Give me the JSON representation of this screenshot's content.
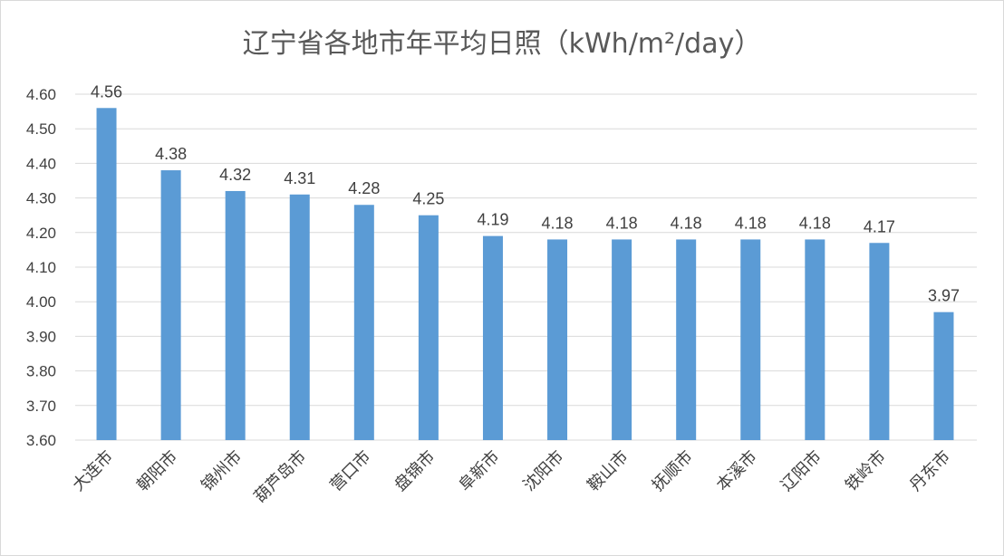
{
  "chart_data": {
    "type": "bar",
    "title": "辽宁省各地市年平均日照（kWh/m²/day）",
    "categories": [
      "大连市",
      "朝阳市",
      "锦州市",
      "葫芦岛市",
      "营口市",
      "盘锦市",
      "阜新市",
      "沈阳市",
      "鞍山市",
      "抚顺市",
      "本溪市",
      "辽阳市",
      "铁岭市",
      "丹东市"
    ],
    "values": [
      4.56,
      4.38,
      4.32,
      4.31,
      4.28,
      4.25,
      4.19,
      4.18,
      4.18,
      4.18,
      4.18,
      4.18,
      4.17,
      3.97
    ],
    "data_labels": [
      "4.56",
      "4.38",
      "4.32",
      "4.31",
      "4.28",
      "4.25",
      "4.19",
      "4.18",
      "4.18",
      "4.18",
      "4.18",
      "4.18",
      "4.17",
      "3.97"
    ],
    "ylim": [
      3.6,
      4.6
    ],
    "yticks": [
      "3.60",
      "3.70",
      "3.80",
      "3.90",
      "4.00",
      "4.10",
      "4.20",
      "4.30",
      "4.40",
      "4.50",
      "4.60"
    ],
    "grid": true,
    "legend": "none",
    "bar_color": "#5b9bd5",
    "xlabel": "",
    "ylabel": ""
  }
}
